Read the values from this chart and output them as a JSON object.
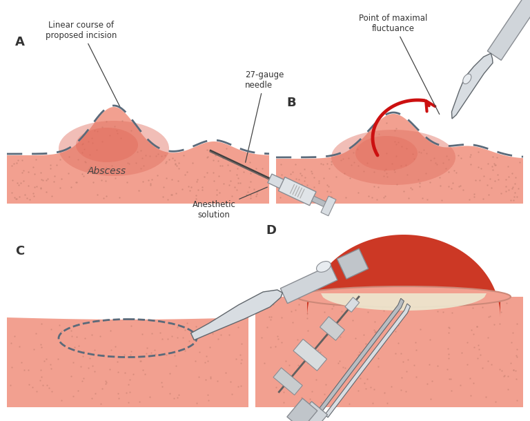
{
  "background_color": "#ffffff",
  "skin_color": "#f2a090",
  "skin_light": "#f5b5a8",
  "abs_red": "#e07060",
  "abs_bright": "#e88070",
  "dashed_color": "#5a6a7a",
  "dot_color": "#d08878",
  "gray_light": "#d8dde2",
  "gray_mid": "#b8bdc2",
  "gray_dark": "#888c92",
  "gray_darker": "#60666c",
  "red_arrow": "#cc1010",
  "wound_red": "#b83020",
  "wound_inner": "#cc3825",
  "pus_color": "#ede8d0",
  "label_A": "A",
  "label_B": "B",
  "label_C": "C",
  "label_D": "D",
  "text_incision": "Linear course of\nproposed incision",
  "text_needle": "27-gauge\nneedle",
  "text_anesthetic": "Anesthetic\nsolution",
  "text_abscess": "Abscess",
  "text_fluctuance": "Point of maximal\nfluctuance",
  "figsize": [
    7.68,
    6.1
  ],
  "dpi": 100
}
